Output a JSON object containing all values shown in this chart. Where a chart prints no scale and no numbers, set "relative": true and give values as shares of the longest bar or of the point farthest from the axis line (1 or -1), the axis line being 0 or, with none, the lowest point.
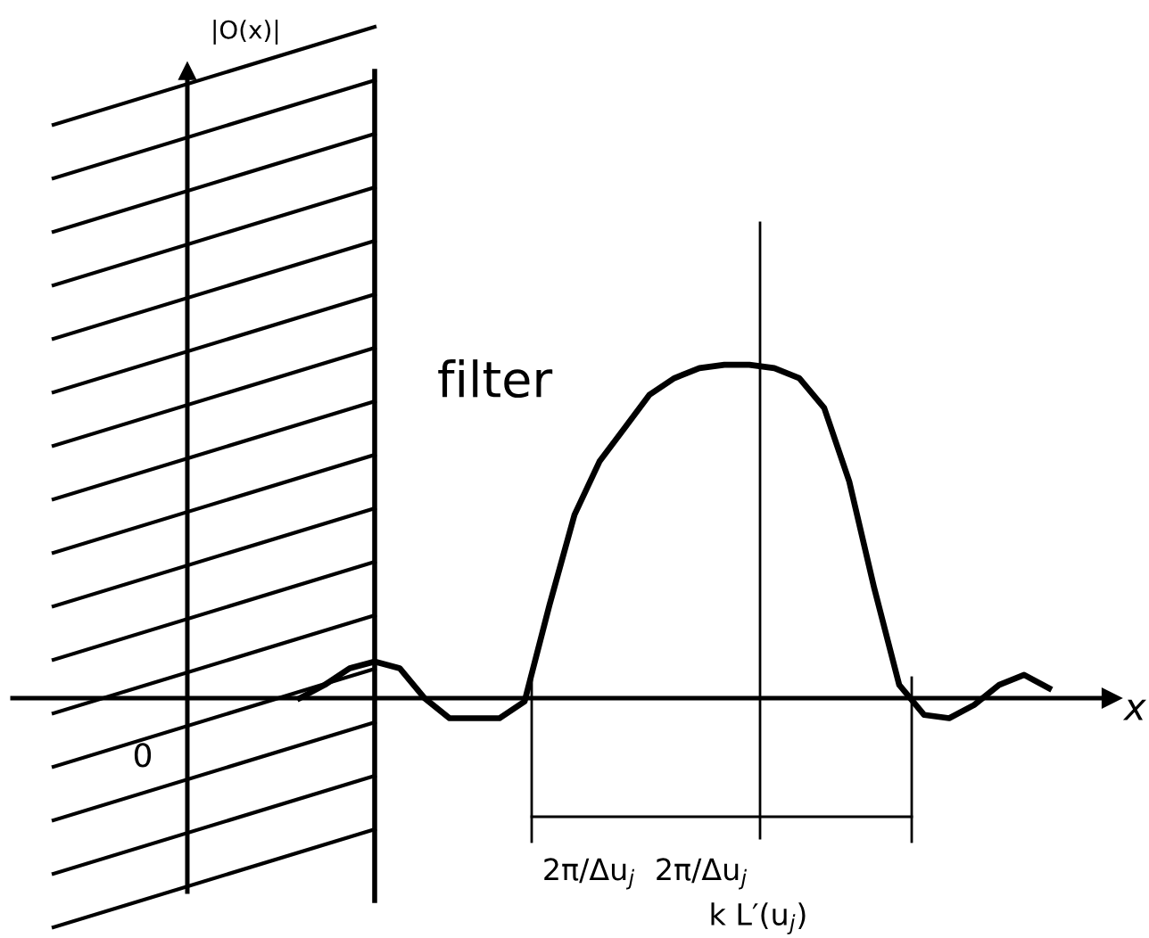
{
  "chart_data": {
    "type": "line",
    "relative": true,
    "xlabel": "x",
    "categories": [
      null,
      null,
      null,
      null,
      null,
      null,
      null,
      null,
      null,
      null,
      null,
      null,
      null,
      null,
      null,
      null,
      null,
      null,
      null,
      null,
      null,
      null,
      null,
      null,
      null,
      null,
      null,
      null,
      null,
      null,
      null,
      null,
      null,
      null,
      null,
      null,
      null,
      null,
      null,
      null,
      null,
      null,
      null,
      null
    ],
    "series": [
      {
        "color": "#000000",
        "values": [
          null,
          null,
          null,
          null,
          null,
          null,
          null,
          null,
          null,
          null,
          null,
          0,
          0.04,
          0.09,
          0.11,
          0.09,
          0,
          -0.06,
          -0.06,
          -0.06,
          -0.01,
          0.28,
          0.55,
          0.71,
          0.81,
          0.91,
          0.96,
          0.99,
          1,
          1,
          0.99,
          0.96,
          0.87,
          0.65,
          0.33,
          0.04,
          -0.05,
          -0.06,
          -0.02,
          0.04,
          0.07,
          0.03,
          null,
          null
        ]
      }
    ],
    "annotations": [
      "|O(x)|",
      "filter",
      "0",
      "2π/Δu$_{j}$",
      "2π/Δu$_{j}$",
      "k L′(u$_{j}$)"
    ],
    "legend": false,
    "marker": "none",
    "line_style": "solid"
  }
}
